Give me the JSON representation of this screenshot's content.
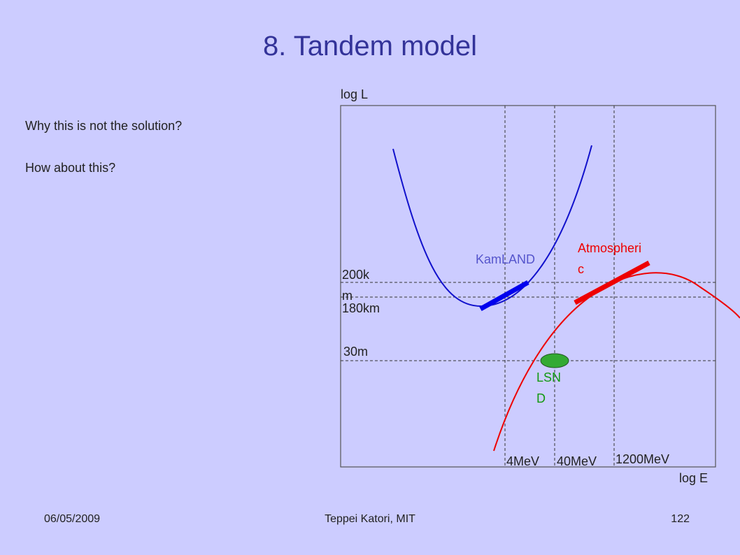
{
  "header": {
    "title": "8. Tandem model"
  },
  "body": {
    "questions": [
      "Why this is not the solution?",
      "How about this?"
    ]
  },
  "diagram": {
    "y_axis_label": "log L",
    "x_axis_label": "log E",
    "distance_labels": [
      "200km",
      "180km",
      "30m"
    ],
    "energy_labels": [
      "4MeV",
      "40MeV",
      "1200MeV"
    ],
    "experiments": [
      "KamLAND",
      "Atmospheric",
      "LSND"
    ]
  },
  "footer": {
    "date": "06/05/2009",
    "author": "Teppei Katori, MIT",
    "page": "122"
  }
}
